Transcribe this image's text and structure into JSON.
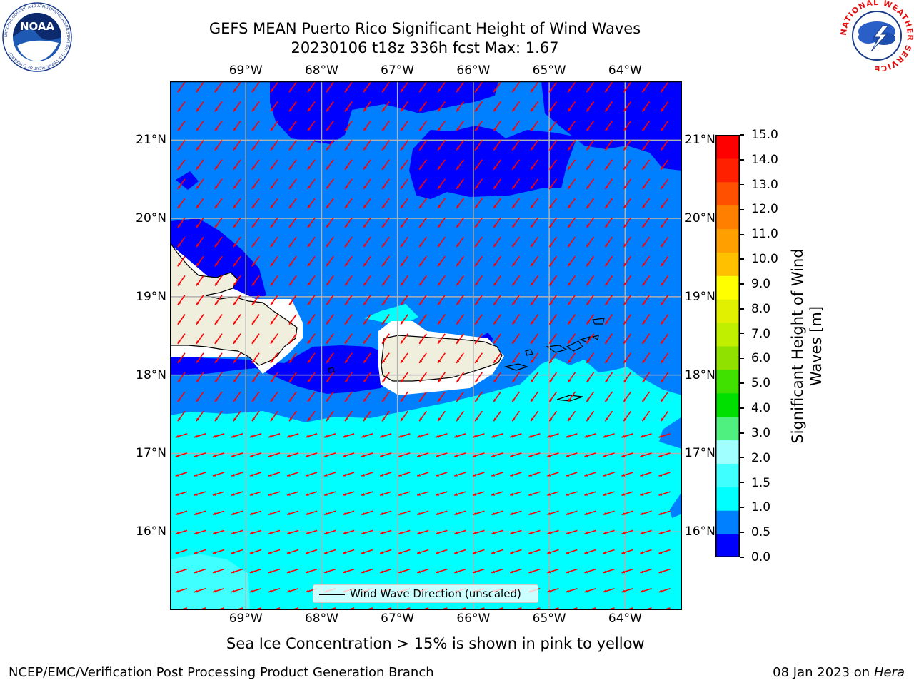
{
  "header": {
    "title_line1": "GEFS MEAN Puerto Rico Significant Height of Wind Waves",
    "title_line2": "20230106 t18z 336h fcst   Max: 1.67"
  },
  "logos": {
    "left": {
      "name": "NOAA",
      "ring_text": "NATIONAL OCEANIC AND ATMOSPHERIC ADMINISTRATION · U.S. DEPARTMENT OF COMMERCE"
    },
    "right": {
      "ring_text": "NATIONAL WEATHER SERVICE"
    }
  },
  "map": {
    "lon_labels": [
      "69°W",
      "68°W",
      "67°W",
      "66°W",
      "65°W",
      "64°W"
    ],
    "lat_labels": [
      "21°N",
      "20°N",
      "19°N",
      "18°N",
      "17°N",
      "16°N"
    ],
    "extent": {
      "lon_min": -70.0,
      "lon_max": -63.25,
      "lat_min": 15.0,
      "lat_max": 21.75
    },
    "grid": true,
    "legend": {
      "position": "bottom-center",
      "label": "Wind Wave Direction (unscaled)"
    },
    "wind_wave_direction": "toward southwest north of ~17.4°N, toward west-southwest south of it"
  },
  "colorbar": {
    "label": "Significant Height of Wind Waves [m]",
    "tick_labels": [
      "0.0",
      "0.5",
      "1.0",
      "1.5",
      "2.0",
      "3.0",
      "4.0",
      "5.0",
      "6.0",
      "7.0",
      "8.0",
      "9.0",
      "10.0",
      "11.0",
      "12.0",
      "13.0",
      "14.0",
      "15.0"
    ],
    "levels": [
      {
        "lo": 0.0,
        "hi": 0.5,
        "color": "#0000ff"
      },
      {
        "lo": 0.5,
        "hi": 1.0,
        "color": "#0080ff"
      },
      {
        "lo": 1.0,
        "hi": 1.5,
        "color": "#00ffff"
      },
      {
        "lo": 1.5,
        "hi": 2.0,
        "color": "#40ffff"
      },
      {
        "lo": 2.0,
        "hi": 3.0,
        "color": "#a0ffff"
      },
      {
        "lo": 3.0,
        "hi": 4.0,
        "color": "#50f080"
      },
      {
        "lo": 4.0,
        "hi": 5.0,
        "color": "#00e000"
      },
      {
        "lo": 5.0,
        "hi": 6.0,
        "color": "#40e000"
      },
      {
        "lo": 6.0,
        "hi": 7.0,
        "color": "#90e000"
      },
      {
        "lo": 7.0,
        "hi": 8.0,
        "color": "#c0f000"
      },
      {
        "lo": 8.0,
        "hi": 9.0,
        "color": "#e0f000"
      },
      {
        "lo": 9.0,
        "hi": 10.0,
        "color": "#ffff00"
      },
      {
        "lo": 10.0,
        "hi": 11.0,
        "color": "#ffc000"
      },
      {
        "lo": 11.0,
        "hi": 12.0,
        "color": "#ffa000"
      },
      {
        "lo": 12.0,
        "hi": 13.0,
        "color": "#ff8000"
      },
      {
        "lo": 13.0,
        "hi": 14.0,
        "color": "#ff5000"
      },
      {
        "lo": 14.0,
        "hi": 15.0,
        "color": "#ff2000"
      },
      {
        "lo": 15.0,
        "hi": 15.0,
        "color": "#ff0000"
      }
    ]
  },
  "footer": {
    "note": "Sea Ice Concentration > 15% is shown in pink to yellow",
    "credit": "NCEP/EMC/Verification Post Processing Product Generation Branch",
    "date": "08 Jan 2023 on",
    "machine": "Hera"
  },
  "colors": {
    "land": "#f0eedc",
    "grid": "#b0b0b0",
    "arrow": "#ff0000",
    "frame": "#000000"
  }
}
